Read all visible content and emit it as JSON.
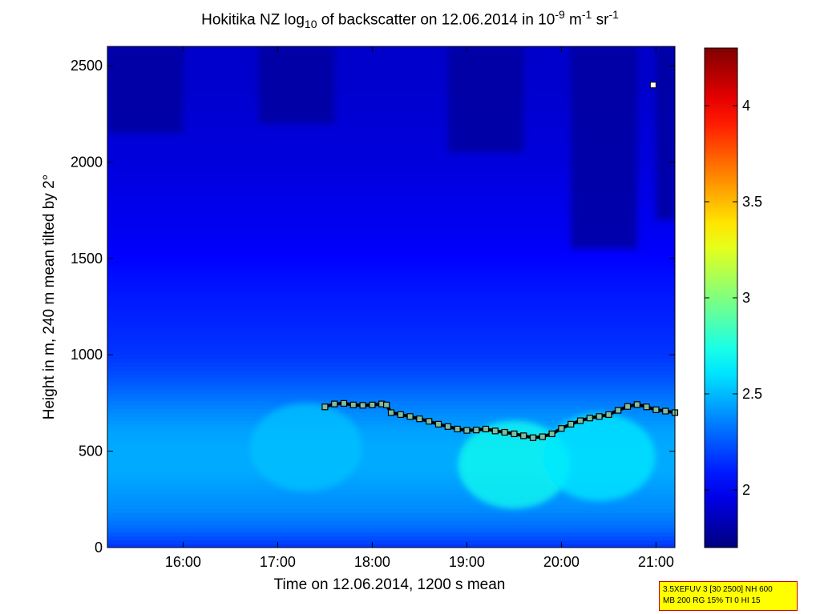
{
  "title": {
    "prefix": "Hokitika NZ log",
    "sub": "10",
    "middle": " of backscatter on 12.06.2014 in 10",
    "exp1": "-9",
    "unit1": " m",
    "exp2": "-1",
    "unit2": " sr",
    "exp3": "-1"
  },
  "info_box": {
    "line1": "3.5XEFUV 3 [30 2500] NH 600",
    "line2": "MB 200 RG 15% TI 0 HI 15"
  },
  "chart_data": {
    "type": "heatmap",
    "title": "Hokitika NZ log10 of backscatter on 12.06.2014 in 10-9 m-1 sr-1",
    "xlabel": "Time on 12.06.2014, 1200 s mean",
    "ylabel": "Height in m, 240 m mean tilted by 2°",
    "xlim": [
      15.2,
      21.2
    ],
    "ylim": [
      0,
      2600
    ],
    "x_ticks": [
      16,
      17,
      18,
      19,
      20,
      21
    ],
    "x_tick_labels": [
      "16:00",
      "17:00",
      "18:00",
      "19:00",
      "20:00",
      "21:00"
    ],
    "y_ticks": [
      0,
      500,
      1000,
      1500,
      2000,
      2500
    ],
    "y_tick_labels": [
      "0",
      "500",
      "1000",
      "1500",
      "2000",
      "2500"
    ],
    "colorbar": {
      "range": [
        1.7,
        4.3
      ],
      "ticks": [
        2,
        2.5,
        3,
        3.5,
        4
      ],
      "tick_labels": [
        "2",
        "2.5",
        "3",
        "3.5",
        "4"
      ],
      "colormap": "jet"
    },
    "background_profile": {
      "heights": [
        0,
        100,
        200,
        300,
        400,
        500,
        600,
        700,
        800,
        900,
        1000,
        1200,
        1400,
        1600,
        1800,
        2000,
        2200,
        2400,
        2600
      ],
      "values": [
        2.15,
        2.3,
        2.38,
        2.42,
        2.46,
        2.46,
        2.44,
        2.38,
        2.3,
        2.22,
        2.16,
        2.11,
        2.06,
        2.0,
        1.97,
        1.94,
        1.92,
        1.9,
        1.89
      ]
    },
    "aerosol_layer": {
      "name": "layer height",
      "times": [
        17.5,
        17.6,
        17.7,
        17.8,
        17.9,
        18.0,
        18.1,
        18.15,
        18.2,
        18.3,
        18.4,
        18.5,
        18.6,
        18.7,
        18.8,
        18.9,
        19.0,
        19.1,
        19.2,
        19.3,
        19.4,
        19.5,
        19.6,
        19.7,
        19.8,
        19.9,
        20.0,
        20.1,
        20.2,
        20.3,
        20.4,
        20.5,
        20.6,
        20.7,
        20.8,
        20.9,
        21.0,
        21.1,
        21.2
      ],
      "heights": [
        730,
        745,
        748,
        740,
        738,
        740,
        745,
        740,
        700,
        690,
        680,
        668,
        655,
        640,
        628,
        615,
        608,
        610,
        615,
        605,
        598,
        590,
        580,
        570,
        575,
        590,
        618,
        640,
        658,
        672,
        680,
        690,
        712,
        732,
        742,
        730,
        715,
        708,
        700
      ]
    },
    "clear_sky_regions": [
      {
        "t0": 15.2,
        "t1": 16.0,
        "h0": 2150,
        "h1": 2600
      },
      {
        "t0": 16.8,
        "t1": 17.6,
        "h0": 2200,
        "h1": 2600
      },
      {
        "t0": 18.8,
        "t1": 19.6,
        "h0": 2050,
        "h1": 2600
      },
      {
        "t0": 20.1,
        "t1": 20.8,
        "h0": 1550,
        "h1": 2600
      },
      {
        "t0": 21.0,
        "t1": 21.2,
        "h0": 1700,
        "h1": 2600
      }
    ],
    "bright_regions": [
      {
        "t": 19.5,
        "h": 430,
        "value": 2.72
      },
      {
        "t": 20.4,
        "h": 470,
        "value": 2.62
      },
      {
        "t": 17.3,
        "h": 520,
        "value": 2.52
      }
    ],
    "white_marker": {
      "time": 20.97,
      "height": 2400
    }
  }
}
